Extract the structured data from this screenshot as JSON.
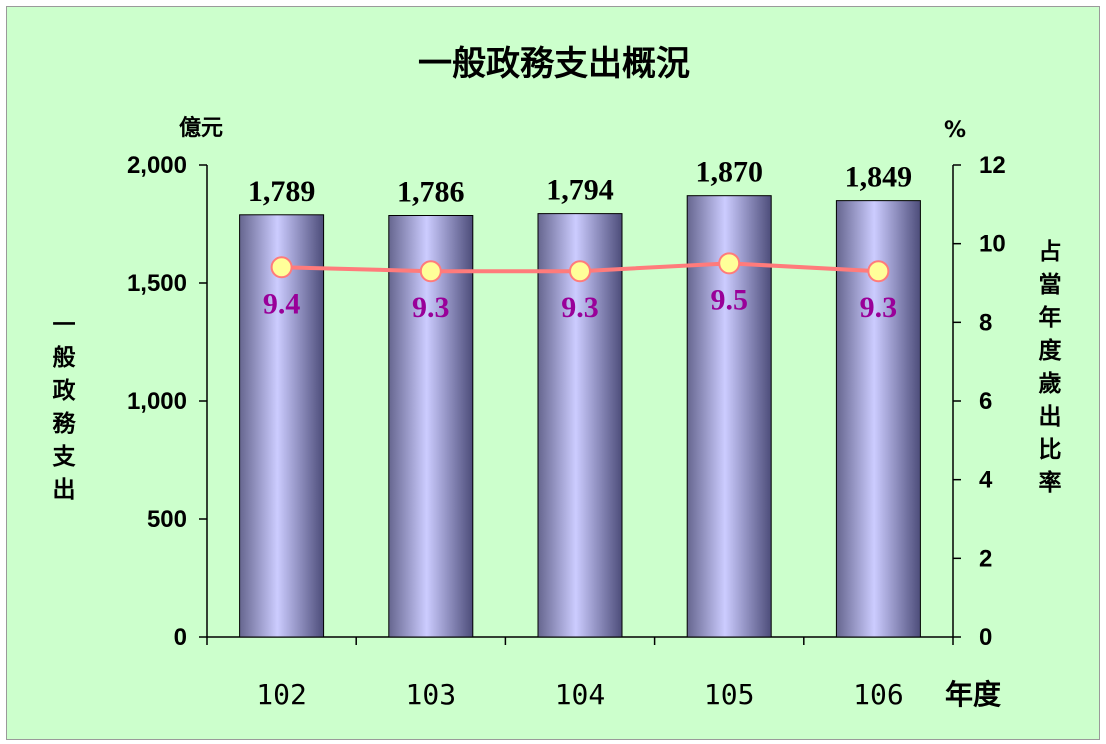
{
  "chart_data": {
    "type": "bar",
    "title": "一般政務支出概況",
    "categories": [
      "102",
      "103",
      "104",
      "105",
      "106"
    ],
    "series": [
      {
        "values": [
          1789,
          1786,
          1794,
          1870,
          1849
        ],
        "axis": "left",
        "kind": "bar",
        "data_labels": [
          "1,789",
          "1,786",
          "1,794",
          "1,870",
          "1,849"
        ]
      },
      {
        "values": [
          9.4,
          9.3,
          9.3,
          9.5,
          9.3
        ],
        "axis": "right",
        "kind": "line",
        "data_labels": [
          "9.4",
          "9.3",
          "9.3",
          "9.5",
          "9.3"
        ]
      }
    ],
    "left_axis": {
      "unit": "億元",
      "label": "一般政務支出",
      "ylim": [
        0,
        2000
      ],
      "ticks": [
        "0",
        "500",
        "1,000",
        "1,500",
        "2,000"
      ]
    },
    "right_axis": {
      "unit": "%",
      "label": "占當年度歲出比率",
      "ylim": [
        0,
        12
      ],
      "ticks": [
        "0",
        "2",
        "4",
        "6",
        "8",
        "10",
        "12"
      ]
    },
    "x_axis": {
      "label": "年度"
    },
    "grid": false,
    "legend": "none",
    "colors": {
      "background": "#ccffcc",
      "bar_top": "#ccccff",
      "bar_shade": "#66668f",
      "line": "#ff7b7b",
      "marker_fill": "#ffff99",
      "marker_edge": "#ff7b7b",
      "rate_label": "#990099"
    }
  }
}
